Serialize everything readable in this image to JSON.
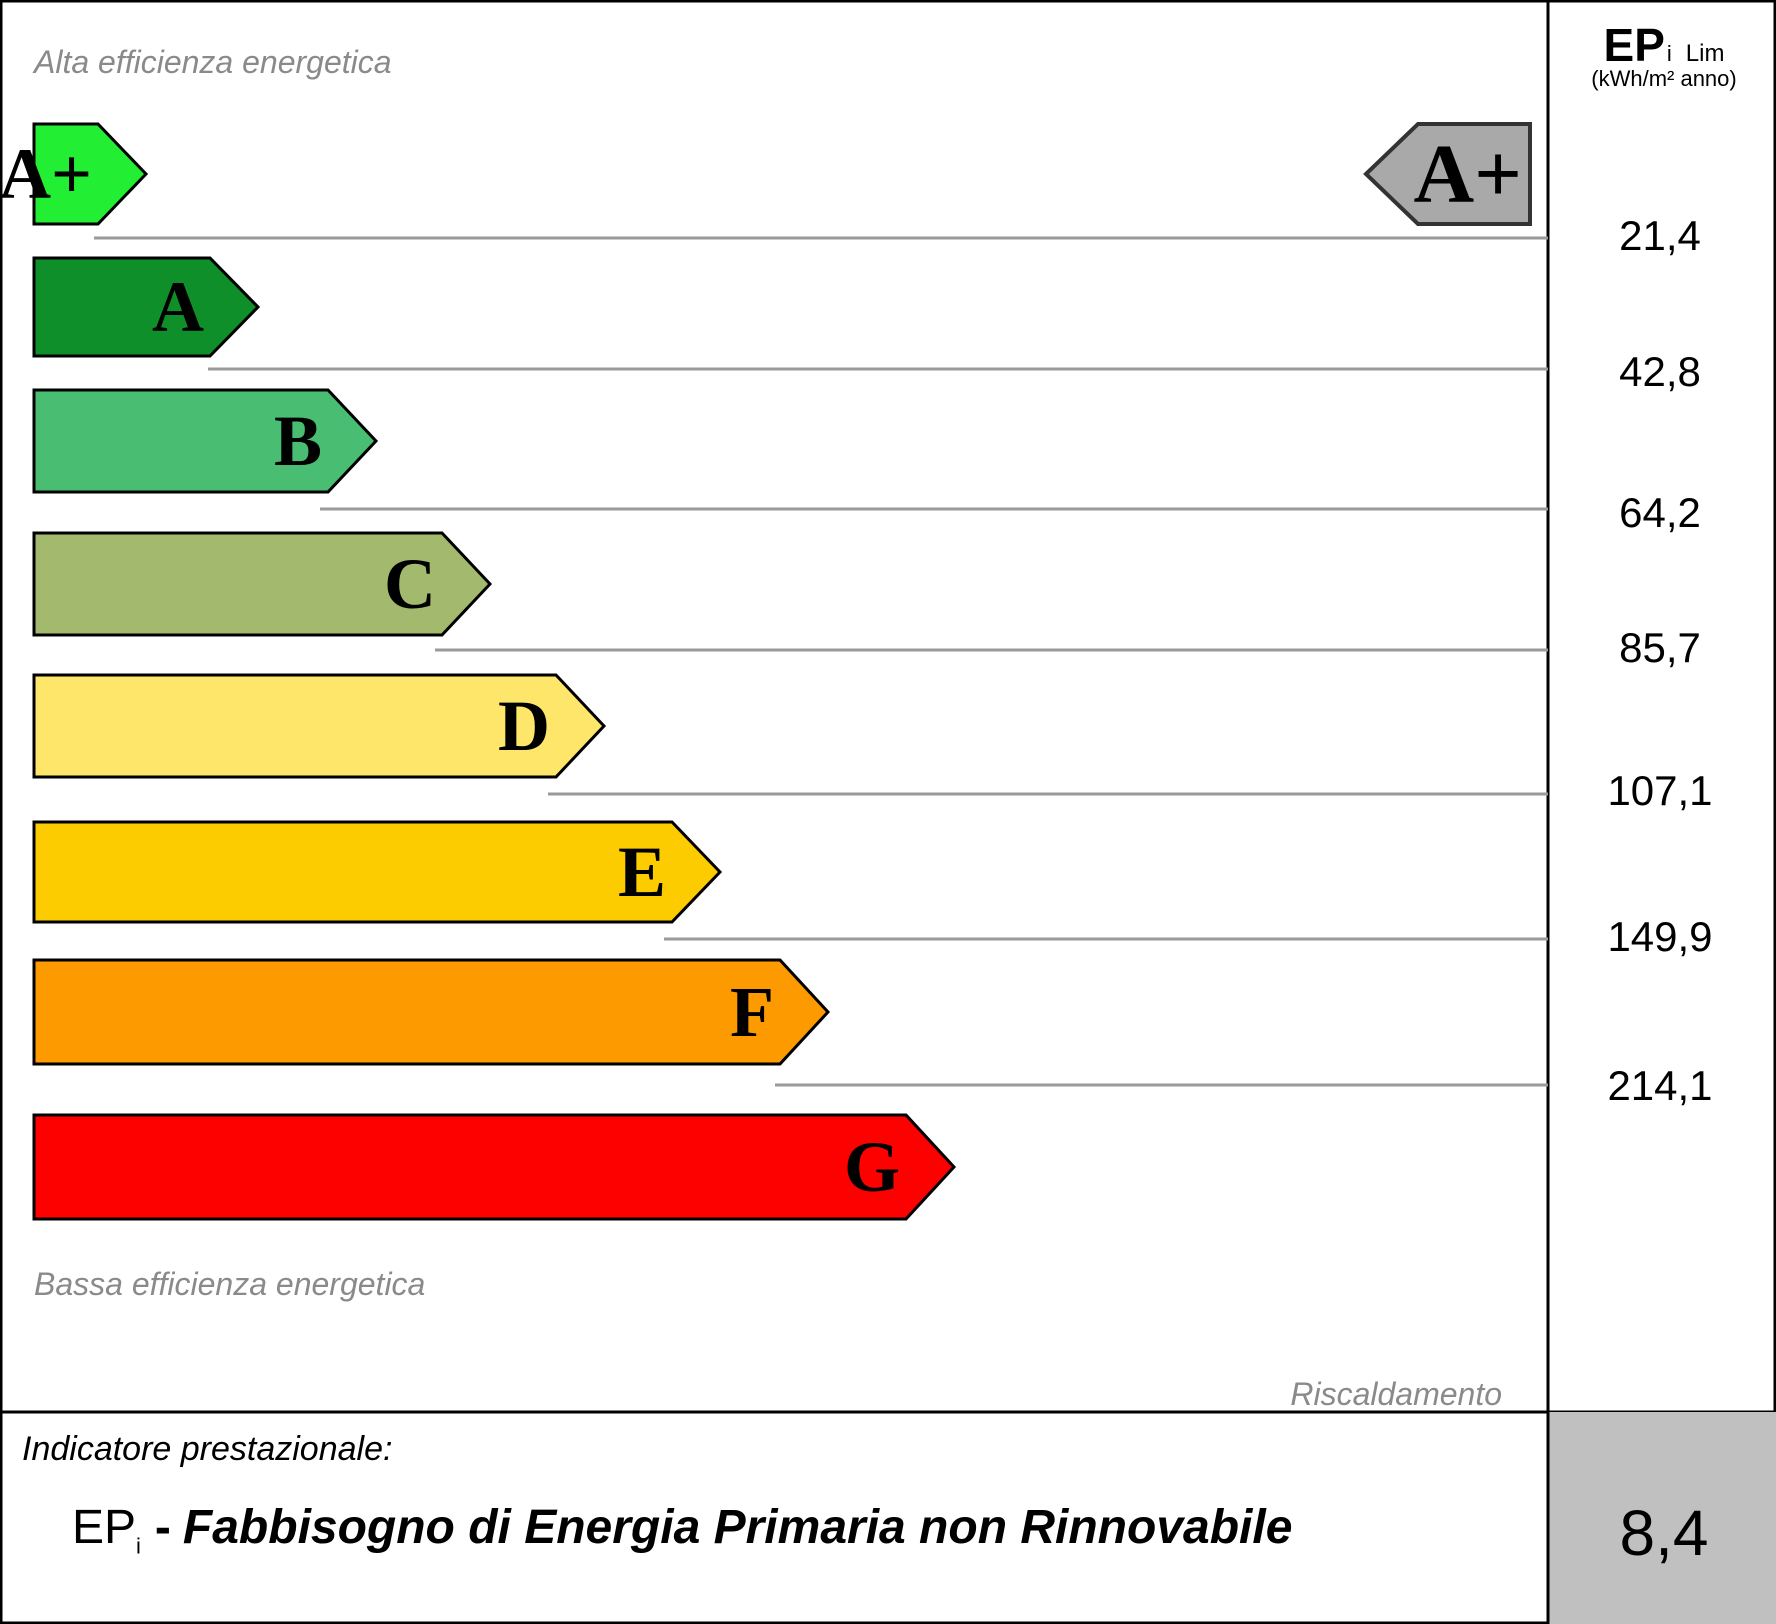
{
  "header": {
    "top_caption": "Alta efficienza energetica",
    "bottom_caption": "Bassa efficienza energetica",
    "section_tag": "Riscaldamento",
    "column_heading": "EP",
    "column_heading_sub": "i",
    "column_heading_suffix": "Lim",
    "column_unit": "(kWh/m² anno)"
  },
  "footer": {
    "indicator_label": "Indicatore prestazionale:",
    "metric_symbol": "EP",
    "metric_symbol_sub": "i",
    "metric_dash": "-",
    "metric_name": "Fabbisogno di Energia Primaria non Rinnovabile",
    "metric_value": "8,4"
  },
  "chart_data": {
    "type": "bar",
    "title": "",
    "categories": [
      "A+",
      "A",
      "B",
      "C",
      "D",
      "E",
      "F",
      "G"
    ],
    "class_colors": [
      "#22ee33",
      "#0f8f2a",
      "#49be73",
      "#a3b96d",
      "#fde66a",
      "#fdcc00",
      "#fd9a00",
      "#fd0000"
    ],
    "limits": [
      "21,4",
      "42,8",
      "64,2",
      "85,7",
      "107,1",
      "149,9",
      "214,1"
    ],
    "limit_values": [
      21.4,
      42.8,
      64.2,
      85.7,
      107.1,
      149.9,
      214.1
    ],
    "indicator_class": "A+",
    "indicator_color": "#a9a9a9",
    "result_value": 8.4
  }
}
